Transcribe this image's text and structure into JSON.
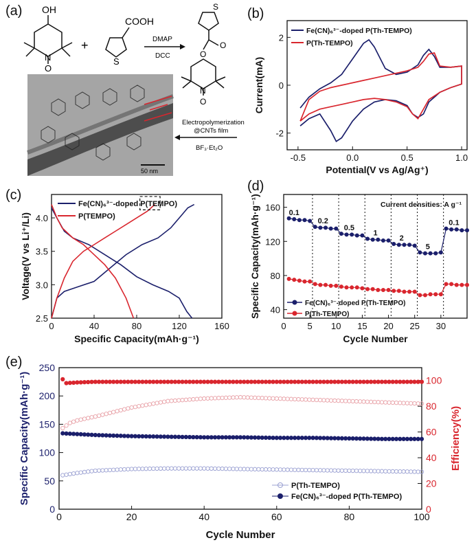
{
  "colors": {
    "navy": "#1b1f6b",
    "red": "#d9262e",
    "pink": "#e8a0a6",
    "lavender": "#9aa0d2",
    "ink": "#111111"
  },
  "panel_labels": {
    "a": "(a)",
    "b": "(b)",
    "c": "(c)",
    "d": "(d)",
    "e": "(e)"
  },
  "scheme": {
    "reagent_dmap": "DMAP",
    "reagent_dcc": "DCC",
    "plus": "+",
    "arrow_label_1": "Electropolymerization",
    "arrow_label_2": "@CNTs film",
    "arrow_label_3": "BF₃·Et₂O",
    "scale_bar": "50 nm",
    "oh_label": "OH",
    "cooh_label": "COOH",
    "n_label": "N",
    "o_label": "O",
    "s_label": "S"
  },
  "chart_data": [
    {
      "panel": "b",
      "type": "line",
      "xlabel": "Potential(V vs Ag/Ag⁺)",
      "ylabel": "Current(mA)",
      "xlim": [
        -0.6,
        1.05
      ],
      "ylim": [
        -2.7,
        2.7
      ],
      "xticks": [
        "-0.5",
        "0.0",
        "0.5",
        "1.0"
      ],
      "xtick_values": [
        -0.5,
        0.0,
        0.5,
        1.0
      ],
      "yticks": [
        "-2",
        "0",
        "2"
      ],
      "ytick_values": [
        -2,
        0,
        2
      ],
      "legend": [
        "Fe(CN)₆³⁻-doped P(Th-TEMPO)",
        "P(Th-TEMPO)"
      ],
      "series": [
        {
          "name": "Fe(CN)₆³⁻-doped P(Th-TEMPO)",
          "color": "navy",
          "x": [
            -0.48,
            -0.4,
            -0.3,
            -0.2,
            -0.1,
            0.0,
            0.1,
            0.15,
            0.2,
            0.3,
            0.4,
            0.5,
            0.6,
            0.65,
            0.7,
            0.75,
            0.8,
            0.9,
            1.0,
            1.0,
            0.9,
            0.8,
            0.7,
            0.65,
            0.6,
            0.55,
            0.5,
            0.4,
            0.3,
            0.2,
            0.1,
            0.0,
            -0.1,
            -0.15,
            -0.2,
            -0.3,
            -0.4,
            -0.48
          ],
          "y": [
            -0.95,
            -0.5,
            -0.15,
            0.1,
            0.45,
            1.1,
            1.75,
            1.9,
            1.6,
            0.7,
            0.45,
            0.55,
            0.85,
            1.25,
            1.5,
            1.2,
            0.75,
            0.75,
            0.8,
            0.05,
            -0.1,
            -0.3,
            -0.7,
            -1.2,
            -1.35,
            -1.2,
            -0.85,
            -0.65,
            -0.6,
            -0.7,
            -1.0,
            -1.5,
            -2.2,
            -2.35,
            -1.9,
            -1.2,
            -1.4,
            -1.7
          ]
        },
        {
          "name": "P(Th-TEMPO)",
          "color": "red",
          "x": [
            -0.48,
            -0.4,
            -0.3,
            -0.2,
            -0.1,
            0.0,
            0.1,
            0.2,
            0.3,
            0.4,
            0.5,
            0.6,
            0.65,
            0.7,
            0.75,
            0.8,
            0.9,
            1.0,
            1.0,
            0.9,
            0.8,
            0.7,
            0.65,
            0.6,
            0.55,
            0.5,
            0.4,
            0.3,
            0.2,
            0.1,
            0.0,
            -0.1,
            -0.2,
            -0.3,
            -0.4,
            -0.48
          ],
          "y": [
            -1.5,
            -0.6,
            -0.25,
            -0.1,
            0.0,
            0.1,
            0.2,
            0.3,
            0.4,
            0.5,
            0.6,
            0.75,
            1.0,
            1.3,
            1.35,
            0.8,
            0.75,
            0.8,
            0.05,
            -0.1,
            -0.3,
            -0.6,
            -1.0,
            -1.4,
            -1.2,
            -0.9,
            -0.7,
            -0.6,
            -0.55,
            -0.6,
            -0.7,
            -0.8,
            -0.9,
            -1.0,
            -1.2,
            -1.5
          ]
        }
      ]
    },
    {
      "panel": "c",
      "type": "line",
      "xlabel": "Specific Capacity(mAh·g⁻¹)",
      "ylabel": "Voltage(V vs Li⁺/Li)",
      "xlim": [
        0,
        160
      ],
      "ylim": [
        2.5,
        4.35
      ],
      "xticks": [
        "0",
        "40",
        "80",
        "120",
        "160"
      ],
      "xtick_values": [
        0,
        40,
        80,
        120,
        160
      ],
      "yticks": [
        "2.5",
        "3.0",
        "3.5",
        "4.0"
      ],
      "ytick_values": [
        2.5,
        3.0,
        3.5,
        4.0
      ],
      "legend": [
        "Fe(CN)₆³⁻-doped P(TEMPO)",
        "P(TEMPO)"
      ],
      "series": [
        {
          "name": "Fe(CN)₆³⁻-doped P(TEMPO) charge",
          "color": "navy",
          "x": [
            0,
            5,
            12,
            25,
            40,
            55,
            70,
            85,
            100,
            112,
            120,
            128,
            134
          ],
          "y": [
            2.5,
            2.8,
            2.9,
            2.97,
            3.05,
            3.25,
            3.45,
            3.6,
            3.7,
            3.85,
            4.0,
            4.15,
            4.2
          ]
        },
        {
          "name": "Fe(CN)₆³⁻-doped P(TEMPO) discharge",
          "color": "navy",
          "x": [
            0,
            5,
            12,
            20,
            35,
            50,
            65,
            80,
            95,
            110,
            120,
            127,
            132
          ],
          "y": [
            4.15,
            4.0,
            3.8,
            3.7,
            3.6,
            3.45,
            3.3,
            3.12,
            3.0,
            2.9,
            2.8,
            2.6,
            2.5
          ]
        },
        {
          "name": "P(TEMPO) charge",
          "color": "red",
          "x": [
            0,
            5,
            12,
            20,
            30,
            40,
            50,
            60,
            70,
            80,
            90,
            97
          ],
          "y": [
            2.5,
            2.8,
            3.1,
            3.35,
            3.5,
            3.6,
            3.7,
            3.8,
            3.9,
            4.0,
            4.1,
            4.2
          ]
        },
        {
          "name": "P(TEMPO) discharge",
          "color": "red",
          "x": [
            0,
            5,
            10,
            20,
            30,
            40,
            50,
            60,
            70,
            77
          ],
          "y": [
            4.2,
            4.0,
            3.85,
            3.7,
            3.6,
            3.45,
            3.3,
            3.1,
            2.8,
            2.5
          ]
        }
      ],
      "annotation": "dashed box near 4.2 V"
    },
    {
      "panel": "d",
      "type": "scatter",
      "xlabel": "Cycle Number",
      "ylabel": "Specific Capacity(mAh·g⁻¹)",
      "xlim": [
        0,
        35
      ],
      "ylim": [
        30,
        175
      ],
      "xticks": [
        "0",
        "5",
        "10",
        "15",
        "20",
        "25",
        "30"
      ],
      "xtick_values": [
        0,
        5,
        10,
        15,
        20,
        25,
        30
      ],
      "yticks": [
        "40",
        "80",
        "120",
        "160"
      ],
      "ytick_values": [
        40,
        80,
        120,
        160
      ],
      "title_note": "Current densities: A g⁻¹",
      "rate_labels": [
        {
          "text": "0.1",
          "x": 2,
          "y": 151
        },
        {
          "text": "0.2",
          "x": 7.5,
          "y": 141
        },
        {
          "text": "0.5",
          "x": 12.5,
          "y": 133
        },
        {
          "text": "1",
          "x": 17.5,
          "y": 127
        },
        {
          "text": "2",
          "x": 22.5,
          "y": 121
        },
        {
          "text": "5",
          "x": 27.5,
          "y": 111
        },
        {
          "text": "0.1",
          "x": 32.5,
          "y": 139
        }
      ],
      "dividers": [
        5.5,
        10.5,
        15.5,
        20.5,
        25.5,
        30.5
      ],
      "legend": [
        "Fe(CN)₆³⁻-doped P(Th-TEMPO)",
        "P(Th-TEMPO)"
      ],
      "series": [
        {
          "name": "Fe(CN)₆³⁻-doped P(Th-TEMPO)",
          "color": "navy",
          "values": [
            147,
            146,
            145,
            145,
            144,
            137,
            136,
            136,
            135,
            135,
            129,
            128,
            128,
            127,
            127,
            123,
            122,
            122,
            121,
            121,
            117,
            116,
            116,
            116,
            115,
            107,
            106,
            106,
            106,
            107,
            135,
            134,
            134,
            133,
            133
          ]
        },
        {
          "name": "P(Th-TEMPO)",
          "color": "red",
          "values": [
            76,
            75,
            74,
            73,
            73,
            70,
            69,
            69,
            68,
            68,
            67,
            66,
            66,
            66,
            65,
            64,
            64,
            63,
            63,
            63,
            62,
            62,
            61,
            61,
            61,
            57,
            57,
            58,
            58,
            58,
            70,
            70,
            69,
            69,
            69
          ]
        }
      ]
    },
    {
      "panel": "e",
      "type": "scatter",
      "xlabel": "Cycle Number",
      "ylabel": "Specific Capacity(mAh·g⁻¹)",
      "ylabel_right": "Efficiency(%)",
      "xlim": [
        0,
        100
      ],
      "ylim": [
        0,
        250
      ],
      "ylim_right": [
        0,
        110
      ],
      "xticks": [
        "0",
        "20",
        "40",
        "60",
        "80",
        "100"
      ],
      "xtick_values": [
        0,
        20,
        40,
        60,
        80,
        100
      ],
      "yticks": [
        "0",
        "50",
        "100",
        "150",
        "200",
        "250"
      ],
      "ytick_values": [
        0,
        50,
        100,
        150,
        200,
        250
      ],
      "yticks_right": [
        "0",
        "20",
        "40",
        "60",
        "80",
        "100"
      ],
      "ytick_values_right": [
        0,
        20,
        40,
        60,
        80,
        100
      ],
      "legend": [
        "P(Th-TEMPO)",
        "Fe(CN)₆³⁻-doped P(Th-TEMPO)"
      ],
      "series": [
        {
          "name": "Fe(CN)₆³⁻-doped P(Th-TEMPO) capacity",
          "color": "navy",
          "filled": true,
          "axis": "left",
          "x": [
            1,
            10,
            20,
            30,
            40,
            50,
            60,
            70,
            80,
            90,
            100
          ],
          "y": [
            134,
            131,
            129,
            128,
            127,
            127,
            126,
            126,
            125,
            124,
            124
          ]
        },
        {
          "name": "P(Th-TEMPO) capacity",
          "color": "lavender",
          "filled": false,
          "axis": "left",
          "x": [
            1,
            5,
            10,
            20,
            30,
            40,
            50,
            60,
            70,
            80,
            90,
            100
          ],
          "y": [
            60,
            64,
            68,
            71,
            72,
            72,
            71,
            70,
            69,
            68,
            67,
            66
          ]
        },
        {
          "name": "Fe(CN)₆³⁻-doped P(Th-TEMPO) efficiency",
          "color": "red",
          "filled": true,
          "axis": "right",
          "x": [
            1,
            2,
            5,
            10,
            20,
            30,
            40,
            50,
            60,
            70,
            80,
            90,
            100
          ],
          "y": [
            101,
            98,
            98.5,
            99,
            99,
            99,
            99,
            99,
            99,
            99,
            99,
            99,
            99
          ]
        },
        {
          "name": "P(Th-TEMPO) efficiency",
          "color": "pink",
          "filled": false,
          "axis": "right",
          "x": [
            1,
            3,
            5,
            10,
            20,
            30,
            40,
            50,
            60,
            70,
            80,
            90,
            100
          ],
          "y": [
            63,
            67,
            69,
            72,
            79,
            84,
            86,
            87,
            86,
            85,
            84,
            83,
            82
          ]
        }
      ]
    }
  ]
}
